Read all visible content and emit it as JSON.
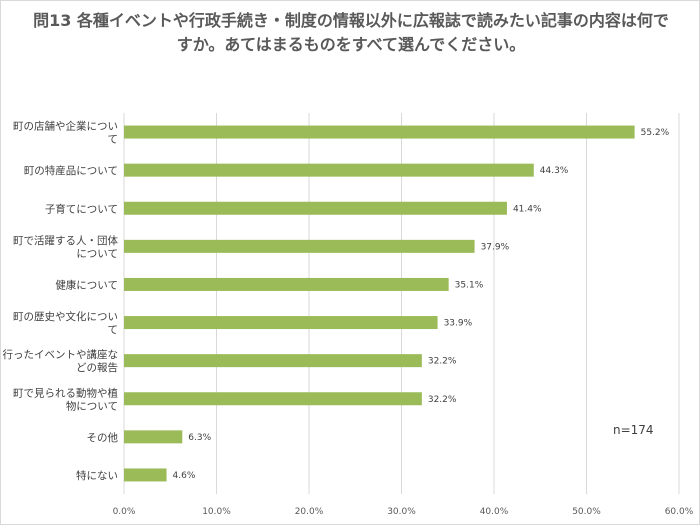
{
  "chart_data": {
    "type": "bar",
    "orientation": "horizontal",
    "title": "問13 各種イベントや行政手続き・制度の情報以外に広報誌で読みたい記事の内容は何ですか。あてはまるものをすべて選んでください。",
    "categories": [
      [
        "町の店舗や企業につい",
        "て"
      ],
      [
        "町の特産品について"
      ],
      [
        "子育てについて"
      ],
      [
        "町で活躍する人・団体",
        "について"
      ],
      [
        "健康について"
      ],
      [
        "町の歴史や文化につい",
        "て"
      ],
      [
        "行ったイベントや講座な",
        "どの報告"
      ],
      [
        "町で見られる動物や植",
        "物について"
      ],
      [
        "その他"
      ],
      [
        "特にない"
      ]
    ],
    "values": [
      55.2,
      44.3,
      41.4,
      37.9,
      35.1,
      33.9,
      32.2,
      32.2,
      6.3,
      4.6
    ],
    "value_labels": [
      "55.2%",
      "44.3%",
      "41.4%",
      "37.9%",
      "35.1%",
      "33.9%",
      "32.2%",
      "32.2%",
      "6.3%",
      "4.6%"
    ],
    "xlim": [
      0,
      60
    ],
    "xticks": [
      0,
      10,
      20,
      30,
      40,
      50,
      60
    ],
    "xtick_labels": [
      "0.0%",
      "10.0%",
      "20.0%",
      "30.0%",
      "40.0%",
      "50.0%",
      "60.0%"
    ],
    "grid": "vertical",
    "bar_color": "#9bbb59",
    "annotation": "n=174"
  }
}
